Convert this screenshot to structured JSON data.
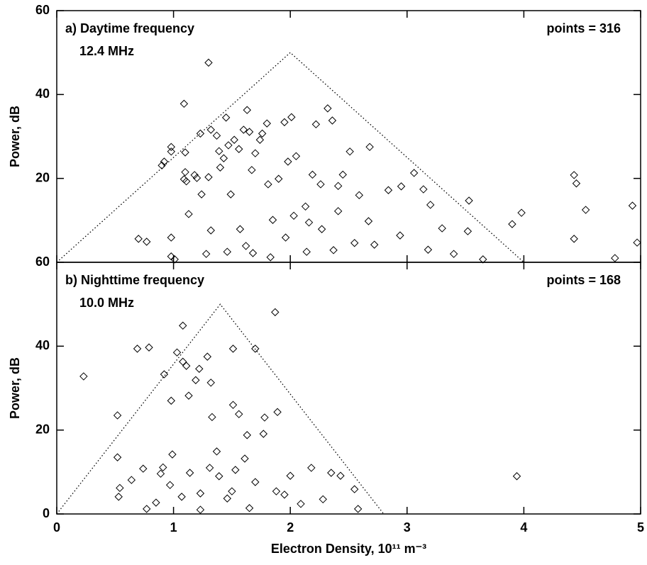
{
  "chart_data": [
    {
      "type": "scatter",
      "title": "a) Daytime frequency",
      "subtitle": "12.4 MHz",
      "annotation": "points = 316",
      "ylabel": "Power, dB",
      "xlim": [
        0,
        5
      ],
      "xticks": [
        0,
        1,
        2,
        3,
        4,
        5
      ],
      "xtick_labels": false,
      "ylim": [
        0,
        60
      ],
      "yticks": [
        20,
        40,
        60
      ],
      "color": "#000000",
      "envelope": {
        "x": [
          0,
          2,
          4
        ],
        "y": [
          0,
          50,
          0
        ]
      },
      "x": [
        0.7,
        0.77,
        0.98,
        0.98,
        1.01,
        0.9,
        0.92,
        0.98,
        0.98,
        1.09,
        1.1,
        1.1,
        1.11,
        1.13,
        1.09,
        1.18,
        1.2,
        1.23,
        1.24,
        1.3,
        1.32,
        1.3,
        1.37,
        1.39,
        1.4,
        1.43,
        1.45,
        1.47,
        1.49,
        1.52,
        1.56,
        1.6,
        1.63,
        1.65,
        1.67,
        1.7,
        1.74,
        1.76,
        1.8,
        1.81,
        1.85,
        1.9,
        1.95,
        1.98,
        2.01,
        2.05,
        2.13,
        2.19,
        2.22,
        2.26,
        2.32,
        2.36,
        2.41,
        2.45,
        2.51,
        2.59,
        2.68,
        2.72,
        2.84,
        2.95,
        3.06,
        3.14,
        3.2,
        3.3,
        3.4,
        3.52,
        3.53,
        3.65,
        3.9,
        3.98,
        4.43,
        4.45,
        4.53,
        4.43,
        4.78,
        4.93,
        4.97,
        1.62,
        1.68,
        1.83,
        2.14,
        2.37,
        2.55,
        2.94,
        3.18,
        1.28,
        1.46,
        1.96,
        2.27,
        2.03,
        1.57,
        2.41,
        2.67,
        2.16,
        1.32
      ],
      "values": [
        5.6,
        4.9,
        5.9,
        1.4,
        0.7,
        23.1,
        24,
        27.5,
        26.4,
        37.8,
        26.2,
        21.5,
        19.3,
        11.5,
        19.8,
        20.8,
        20.1,
        30.7,
        16.2,
        20.3,
        31.6,
        47.6,
        30.2,
        26.5,
        22.6,
        24.8,
        34.5,
        27.9,
        16.2,
        29.2,
        27,
        31.6,
        36.3,
        31.1,
        22,
        26,
        29.2,
        30.7,
        33.1,
        18.6,
        10.1,
        19.9,
        33.4,
        24,
        34.6,
        25.3,
        13.3,
        20.9,
        32.9,
        18.6,
        36.7,
        33.8,
        18.2,
        20.9,
        26.4,
        16,
        27.5,
        4.2,
        17.2,
        18.1,
        21.3,
        17.4,
        13.7,
        8.1,
        2,
        7.4,
        14.7,
        0.7,
        9.1,
        11.8,
        20.8,
        18.8,
        12.5,
        5.6,
        1,
        13.5,
        4.7,
        3.9,
        2.2,
        1.2,
        2.5,
        2.9,
        4.6,
        6.4,
        3,
        2,
        2.5,
        5.9,
        7.9,
        11.1,
        7.9,
        12.2,
        9.8,
        9.5,
        7.6
      ]
    },
    {
      "type": "scatter",
      "title": "b) Nighttime frequency",
      "subtitle": "10.0 MHz",
      "annotation": "points = 168",
      "ylabel": "Power, dB",
      "xlabel": "Electron Density, 10¹¹ m⁻³",
      "xlim": [
        0,
        5
      ],
      "xticks": [
        0,
        1,
        2,
        3,
        4,
        5
      ],
      "xtick_labels": true,
      "ylim": [
        0,
        60
      ],
      "yticks": [
        0,
        20,
        40,
        60
      ],
      "color": "#000000",
      "envelope": {
        "x": [
          0,
          1.4,
          2.8
        ],
        "y": [
          0,
          50,
          0
        ]
      },
      "x": [
        0.23,
        0.52,
        0.52,
        0.53,
        0.54,
        0.69,
        0.79,
        0.74,
        0.77,
        0.89,
        0.98,
        0.92,
        1.03,
        1.08,
        1.11,
        1.08,
        1.13,
        1.19,
        1.22,
        1.29,
        1.32,
        1.33,
        1.51,
        1.51,
        1.56,
        1.63,
        1.7,
        1.78,
        1.87,
        1.89,
        1.77,
        1.37,
        1.39,
        1.07,
        1.23,
        1.65,
        1.46,
        2.0,
        2.18,
        2.43,
        2.55,
        2.58,
        2.35,
        2.28,
        2.09,
        3.94,
        0.97,
        1.14,
        1.31,
        1.53,
        1.7,
        1.88,
        0.85,
        1.23,
        1.5,
        1.61,
        0.99,
        0.64,
        0.91,
        1.95
      ],
      "values": [
        32.8,
        23.5,
        13.5,
        4.1,
        6.2,
        39.4,
        39.7,
        10.8,
        1.2,
        9.6,
        27,
        33.3,
        38.5,
        36.3,
        35.3,
        44.9,
        28.2,
        31.9,
        34.6,
        37.5,
        31.3,
        23.1,
        39.4,
        26,
        23.8,
        18.8,
        39.4,
        23,
        48.1,
        24.3,
        19.1,
        14.9,
        9,
        4.1,
        4.9,
        1.4,
        3.7,
        9.1,
        11,
        9.1,
        5.9,
        1.2,
        9.8,
        3.5,
        2.4,
        9,
        6.9,
        9.8,
        11,
        10.5,
        7.6,
        5.4,
        2.7,
        1,
        5.4,
        13.2,
        14.2,
        8.1,
        11.1,
        4.6
      ]
    }
  ]
}
